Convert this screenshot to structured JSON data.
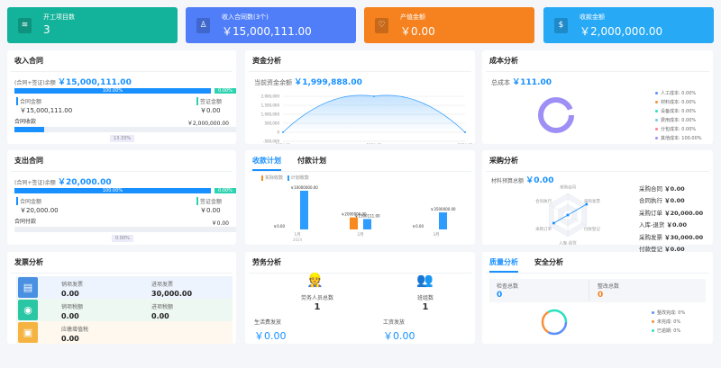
{
  "cards": [
    {
      "title": "开工项目数",
      "value": "3",
      "icon": "layers-icon",
      "color": "#13b29a"
    },
    {
      "title": "收入合同数(3个)",
      "value": "￥15,000,111.00",
      "icon": "stamp-icon",
      "color": "#4f7ef8"
    },
    {
      "title": "产值金额",
      "value": "￥0.00",
      "icon": "heart-shield-icon",
      "color": "#f5811f"
    },
    {
      "title": "收款金额",
      "value": "￥2,000,000.00",
      "icon": "money-bag-icon",
      "color": "#27a9f5"
    }
  ],
  "income": {
    "title": "收入合同",
    "balance_label": "(合同+签证)余额",
    "balance": "￥15,000,111.00",
    "contract_pct": "100.00%",
    "visa_pct": "0.00%",
    "contract_label": "合同金额",
    "contract_amount": "￥15,000,111.00",
    "visa_label": "签证金额",
    "visa_amount": "￥0.00",
    "collect_label": "合同收款",
    "collect_amount": "￥2,000,000.00",
    "collect_pct": "13.33%",
    "collect_fraction": 0.1333
  },
  "expense": {
    "title": "支出合同",
    "balance_label": "(合同+签证)余额",
    "balance": "￥20,000.00",
    "contract_pct": "100.00%",
    "visa_pct": "0.00%",
    "contract_label": "合同金额",
    "contract_amount": "￥20,000.00",
    "visa_label": "签证金额",
    "visa_amount": "￥0.00",
    "collect_label": "合同付款",
    "collect_amount": "￥0.00",
    "collect_pct": "0.00%",
    "collect_fraction": 0
  },
  "fund": {
    "title": "资金分析",
    "label": "当前资金余额",
    "value": "￥1,999,888.00"
  },
  "cost": {
    "title": "成本分析",
    "label": "总成本",
    "value": "￥111.00",
    "legend": [
      {
        "label": "人工成本: 0.00%",
        "color": "#5b8ff9"
      },
      {
        "label": "材料成本: 0.00%",
        "color": "#f6903d"
      },
      {
        "label": "设备成本: 0.00%",
        "color": "#2ee0c0"
      },
      {
        "label": "费用成本: 0.00%",
        "color": "#6dc8ec"
      },
      {
        "label": "分包成本: 0.00%",
        "color": "#ff7f8a"
      },
      {
        "label": "其他成本: 100.00%",
        "color": "#9d8ff5"
      }
    ]
  },
  "plan": {
    "tabs": [
      "收款计划",
      "付款计划"
    ],
    "active_tab": 0
  },
  "purchase": {
    "title": "采购分析",
    "label": "材料预算总额",
    "value": "￥0.00",
    "radar_axes": [
      "采购合同",
      "采购发票",
      "付款登记",
      "入库-退货",
      "采购订单",
      "合同执行"
    ],
    "items": [
      {
        "label": "采购合同",
        "value": "￥0.00"
      },
      {
        "label": "合同执行",
        "value": "￥0.00"
      },
      {
        "label": "采购订单",
        "value": "￥20,000.00"
      },
      {
        "label": "入库-退货",
        "value": "￥0.00"
      },
      {
        "label": "采购发票",
        "value": "￥30,000.00"
      },
      {
        "label": "付款登记",
        "value": "￥0.00"
      }
    ]
  },
  "invoice": {
    "title": "发票分析",
    "rows": [
      {
        "icon": "invoice-icon",
        "color": "#4a90e2",
        "bg": "#eef4fd",
        "a_label": "销项发票",
        "a_value": "0.00",
        "b_label": "进项发票",
        "b_value": "30,000.00"
      },
      {
        "icon": "tax-hand-icon",
        "color": "#2bc6a4",
        "bg": "#eef8f2",
        "a_label": "销项税额",
        "a_value": "0.00",
        "b_label": "进项税额",
        "b_value": "0.00"
      },
      {
        "icon": "vat-icon",
        "color": "#f5b342",
        "bg": "#fef8ee",
        "a_label": "应缴增值税",
        "a_value": "0.00"
      }
    ]
  },
  "labor": {
    "title": "劳务分析",
    "workers_label": "劳务人员总数",
    "workers": "1",
    "teams_label": "班组数",
    "teams": "1",
    "living_label": "生活费发放",
    "living": "￥0.00",
    "wage_label": "工资发放",
    "wage": "￥0.00"
  },
  "quality": {
    "tabs": [
      "质量分析",
      "安全分析"
    ],
    "check_label": "检查总数",
    "check": "0",
    "rectify_label": "整改总数",
    "rectify": "0",
    "legend": [
      {
        "label": "整改完成: 0%",
        "color": "#5b8ff9"
      },
      {
        "label": "未完成: 0%",
        "color": "#f6903d"
      },
      {
        "label": "已逾期: 0%",
        "color": "#2ee0c0"
      }
    ]
  },
  "chart_data": [
    {
      "type": "area",
      "x": [
        "2024-01",
        "2024-02",
        "2024-03"
      ],
      "values": [
        0,
        2000000,
        0
      ],
      "yticks": [
        "2,000,000",
        "1,500,000",
        "1,000,000",
        "500,000",
        "0",
        "-500,000"
      ],
      "ylim": [
        -500000,
        2000000
      ],
      "color": "#3aa0ff"
    },
    {
      "type": "bar",
      "categories": [
        "1月",
        "2月",
        "3月"
      ],
      "sub_label": "2024",
      "series": [
        {
          "name": "实际收款",
          "color": "#f7891f",
          "values": [
            0,
            2000000,
            0
          ],
          "labels": [
            "￥0.00",
            "￥2000000.00",
            "￥0.00"
          ]
        },
        {
          "name": "计划收款",
          "color": "#2d9cff",
          "values": [
            10000000,
            1500111,
            3500000
          ],
          "labels": [
            "￥10000000.00",
            "￥1500111.00",
            "￥3500000.00"
          ]
        }
      ]
    },
    {
      "type": "pie",
      "series": [
        {
          "name": "其他成本",
          "value": 100
        }
      ]
    }
  ]
}
